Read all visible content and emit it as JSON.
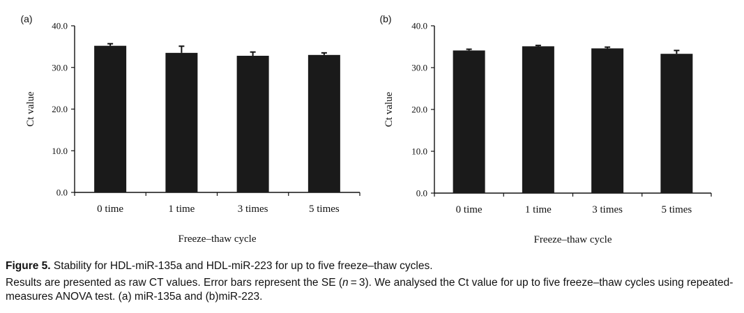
{
  "chart_data": [
    {
      "type": "bar",
      "panel_label": "(a)",
      "title": "",
      "xlabel": "Freeze–thaw cycle",
      "ylabel": "Ct value",
      "ylim": [
        0,
        40
      ],
      "yticks": [
        "0.0",
        "10.0",
        "20.0",
        "30.0",
        "40.0"
      ],
      "ytick_values": [
        0,
        10,
        20,
        30,
        40
      ],
      "categories": [
        "0 time",
        "1 time",
        "3 times",
        "5 times"
      ],
      "values": [
        35.2,
        33.5,
        32.8,
        33.0
      ],
      "errors": [
        0.5,
        1.6,
        0.9,
        0.5
      ],
      "color": "#1a1a1a"
    },
    {
      "type": "bar",
      "panel_label": "(b)",
      "title": "",
      "xlabel": "Freeze–thaw cycle",
      "ylabel": "Ct value",
      "ylim": [
        0,
        40
      ],
      "yticks": [
        "0.0",
        "10.0",
        "20.0",
        "30.0",
        "40.0"
      ],
      "ytick_values": [
        0,
        10,
        20,
        30,
        40
      ],
      "categories": [
        "0 time",
        "1 time",
        "3 times",
        "5 times"
      ],
      "values": [
        34.1,
        35.1,
        34.6,
        33.3
      ],
      "errors": [
        0.3,
        0.2,
        0.3,
        0.8
      ],
      "color": "#1a1a1a"
    }
  ],
  "caption": {
    "figure_label": "Figure 5.",
    "title": "Stability for HDL-miR-135a and HDL-miR-223 for up to five freeze–thaw cycles.",
    "body_pre": "Results are presented as raw CT values. Error bars represent the SE (",
    "body_n": "n",
    "body_post": " = 3). We analysed the Ct value for up to five freeze–thaw cycles using repeated-measures ANOVA test. (a) miR-135a and (b)miR-223."
  }
}
